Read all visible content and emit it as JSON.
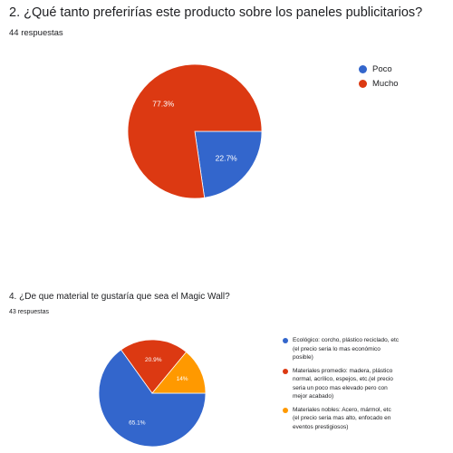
{
  "q1": {
    "title": "2. ¿Qué tanto preferirías este producto sobre los paneles publicitarios?",
    "responses": "44 respuestas"
  },
  "q2": {
    "title": "4. ¿De que material te gustaría que sea el Magic Wall?",
    "responses": "43 respuestas"
  },
  "chart_data": [
    {
      "type": "pie",
      "title": "2. ¿Qué tanto preferirías este producto sobre los paneles publicitarios?",
      "categories": [
        "Poco",
        "Mucho"
      ],
      "values": [
        22.7,
        77.3
      ],
      "labels": [
        "22.7%",
        "77.3%"
      ],
      "colors": [
        "#3366cc",
        "#dc3912"
      ],
      "legend_position": "right"
    },
    {
      "type": "pie",
      "title": "4. ¿De que material te gustaría que sea el Magic Wall?",
      "categories": [
        "Ecológico: corcho, plástico reciclado, etc\n(el precio seria lo mas económico\nposible)",
        "Materiales promedio: madera, plástico\nnormal, acrílico, espejos, etc.(el precio\nseria un poco mas elevado pero con\nmejor acabado)",
        "Materiales nobles: Acero, mármol, etc\n(el precio seria mas alto, enfocado en\neventos prestigiosos)"
      ],
      "values": [
        65.1,
        20.9,
        14
      ],
      "labels": [
        "65.1%",
        "20.9%",
        "14%"
      ],
      "colors": [
        "#3366cc",
        "#dc3912",
        "#ff9900"
      ],
      "legend_position": "right"
    }
  ]
}
